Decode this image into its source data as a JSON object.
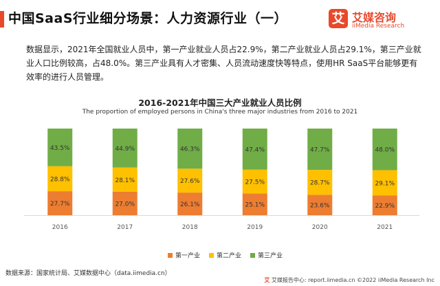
{
  "header": {
    "title": "中国SaaS行业细分场景：人力资源行业（一）",
    "logo_mark": "艾",
    "logo_cn": "艾媒咨询",
    "logo_en": "iiMedia Research"
  },
  "paragraph": "数据显示，2021年全国就业人员中，第一产业就业人员占22.9%，第二产业就业人员占29.1%，第三产业就业人口比例较高，占48.0%。第三产业具有人才密集、人员流动速度快等特点，使用HR SaaS平台能够更有效率的进行人员管理。",
  "colors": {
    "accent": "#e8492b",
    "primary": "#ed7d31",
    "secondary": "#ffc000",
    "tertiary": "#70ad47"
  },
  "chart_data": {
    "type": "bar",
    "stacked": true,
    "title": "2016-2021年中国三大产业就业人员比例",
    "subtitle": "The proportion of employed persons in China's three major industries from 2016 to 2021",
    "categories": [
      "2016",
      "2017",
      "2018",
      "2019",
      "2020",
      "2021"
    ],
    "series": [
      {
        "name": "第一产业",
        "color": "#ed7d31",
        "values": [
          27.7,
          27.0,
          26.1,
          25.1,
          23.6,
          22.9
        ]
      },
      {
        "name": "第二产业",
        "color": "#ffc000",
        "values": [
          28.8,
          28.1,
          27.6,
          27.5,
          28.7,
          29.1
        ]
      },
      {
        "name": "第三产业",
        "color": "#70ad47",
        "values": [
          43.5,
          44.9,
          46.3,
          47.4,
          47.7,
          48.0
        ]
      }
    ],
    "value_suffix": "%",
    "ylim": [
      0,
      100
    ],
    "grid": false,
    "legend_position": "bottom"
  },
  "source": "数据来源：国家统计局、艾媒数据中心（data.iimedia.cn）",
  "footer": {
    "icon": "艾",
    "text": "艾媒报告中心: report.iimedia.cn  ©2022 iiMedia Research Inc"
  }
}
